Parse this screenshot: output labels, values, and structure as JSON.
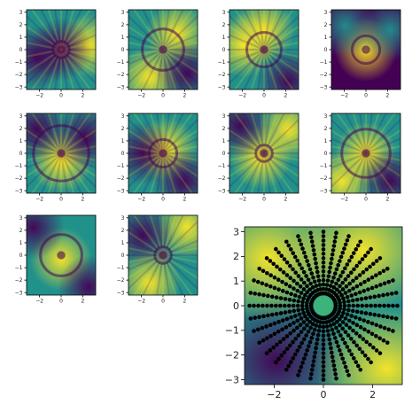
{
  "chart_data": {
    "type": "heatmap",
    "description_grid": "4x4 grid of heatmap panels; bottom-right 2x2 is one large panel with radial dot overlay",
    "colormap": "viridis",
    "colors": {
      "low": "#440154",
      "mid": "#21918c",
      "high": "#fde725",
      "dots": "#000000",
      "center_disk": "#3cb37a"
    },
    "small_panels": {
      "count": 10,
      "xlim": [
        -3.2,
        3.2
      ],
      "ylim": [
        -3.2,
        3.2
      ],
      "x_ticks": [
        -2,
        0,
        2
      ],
      "y_ticks": [
        -3,
        -2,
        -1,
        0,
        1,
        2,
        3
      ],
      "x_tick_labels": [
        "−2",
        "0",
        "2"
      ],
      "y_tick_labels": [
        "−3",
        "−2",
        "−1",
        "0",
        "1",
        "2",
        "3"
      ]
    },
    "large_panel": {
      "xlim": [
        -3.2,
        3.2
      ],
      "ylim": [
        -3.2,
        3.2
      ],
      "x_ticks": [
        -2,
        0,
        2
      ],
      "y_ticks": [
        -3,
        -2,
        -1,
        0,
        1,
        2,
        3
      ],
      "x_tick_labels": [
        "−2",
        "0",
        "2"
      ],
      "y_tick_labels": [
        "−3",
        "−2",
        "−1",
        "0",
        "1",
        "2",
        "3"
      ],
      "overlay": {
        "rays": 36,
        "points_per_ray": 15,
        "r_min": 0.5,
        "r_max": 3.0,
        "center_disk_radius": 0.4
      }
    }
  }
}
